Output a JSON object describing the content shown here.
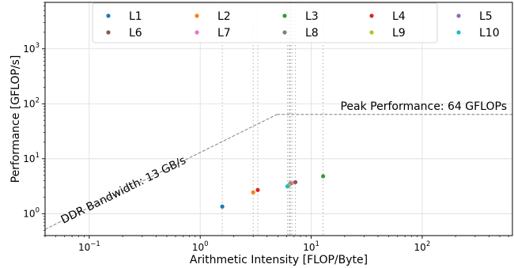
{
  "chart_data": {
    "type": "scatter",
    "title": "",
    "xlabel": "Arithmetic Intensity [FLOP/Byte]",
    "ylabel": "Performance [GFLOP/s]",
    "xscale": "log",
    "yscale": "log",
    "xlim": [
      0.04,
      650
    ],
    "ylim": [
      0.4,
      7000
    ],
    "grid": true,
    "legend": {
      "placement": "top-center",
      "columns": 5
    },
    "x_ticks": [
      {
        "value": 0.1,
        "base": "10",
        "exp": "−1"
      },
      {
        "value": 1,
        "base": "10",
        "exp": "0"
      },
      {
        "value": 10,
        "base": "10",
        "exp": "1"
      },
      {
        "value": 100,
        "base": "10",
        "exp": "2"
      }
    ],
    "y_ticks": [
      {
        "value": 1,
        "base": "10",
        "exp": "0"
      },
      {
        "value": 10,
        "base": "10",
        "exp": "1"
      },
      {
        "value": 100,
        "base": "10",
        "exp": "2"
      },
      {
        "value": 1000,
        "base": "10",
        "exp": "3"
      }
    ],
    "roofline": {
      "bandwidth_gb_s": 13,
      "peak_gflops": 64,
      "ridge_point": 4.92,
      "bandwidth_label": "DDR Bandwidth: 13 GB/s",
      "peak_label": "Peak Performance: 64 GFLOPs",
      "line_color": "#808080"
    },
    "series": [
      {
        "name": "L1",
        "color": "#1f77b4",
        "x": 1.58,
        "y": 1.35
      },
      {
        "name": "L2",
        "color": "#ff7f0e",
        "x": 3.0,
        "y": 2.45
      },
      {
        "name": "L3",
        "color": "#2ca02c",
        "x": 12.8,
        "y": 4.8
      },
      {
        "name": "L4",
        "color": "#d62728",
        "x": 3.3,
        "y": 2.7
      },
      {
        "name": "L5",
        "color": "#9467bd",
        "x": 6.5,
        "y": 3.55
      },
      {
        "name": "L6",
        "color": "#8c564b",
        "x": 7.2,
        "y": 3.75
      },
      {
        "name": "L7",
        "color": "#e377c2",
        "x": 6.7,
        "y": 3.6
      },
      {
        "name": "L8",
        "color": "#7f7f7f",
        "x": 6.4,
        "y": 3.45
      },
      {
        "name": "L9",
        "color": "#bcbd22",
        "x": 6.3,
        "y": 3.3
      },
      {
        "name": "L10",
        "color": "#17becf",
        "x": 6.1,
        "y": 3.15
      }
    ]
  }
}
